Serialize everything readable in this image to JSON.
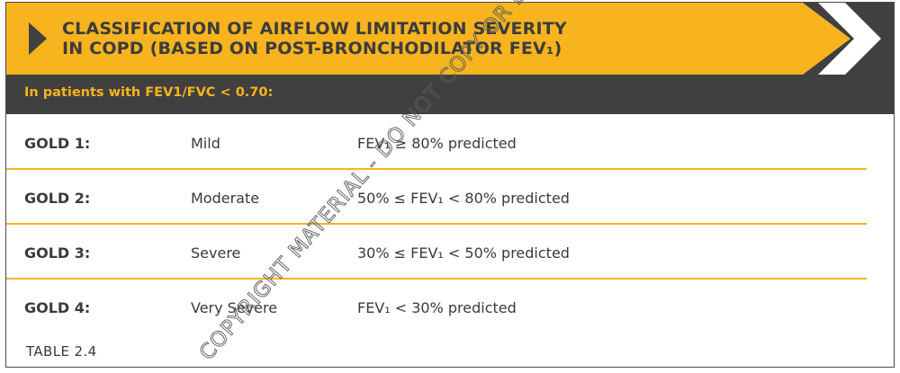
{
  "header": {
    "title_line1": "CLASSIFICATION OF AIRFLOW LIMITATION SEVERITY",
    "title_line2": "IN COPD (BASED ON POST-BRONCHODILATOR FEV₁)"
  },
  "subheader": {
    "text": "In patients with FEV1/FVC < 0.70:"
  },
  "rows": [
    {
      "grade": "GOLD 1:",
      "severity": "Mild",
      "criteria": "FEV₁ ≥ 80% predicted"
    },
    {
      "grade": "GOLD 2:",
      "severity": "Moderate",
      "criteria": "50% ≤ FEV₁ < 80% predicted"
    },
    {
      "grade": "GOLD 3:",
      "severity": "Severe",
      "criteria": "30% ≤ FEV₁ < 50% predicted"
    },
    {
      "grade": "GOLD 4:",
      "severity": "Very Severe",
      "criteria": "FEV₁ < 30% predicted"
    }
  ],
  "caption": "TABLE 2.4",
  "watermark": {
    "text": "COPYRIGHT MATERIAL - DO NOT COPY OR DISTRIBUTE"
  },
  "colors": {
    "accent": "#f7b41e",
    "dark": "#404040",
    "text": "#3a3a3a"
  },
  "icons": {
    "banner_left": "play-triangle-icon",
    "banner_right": "chevron-right-icon"
  }
}
